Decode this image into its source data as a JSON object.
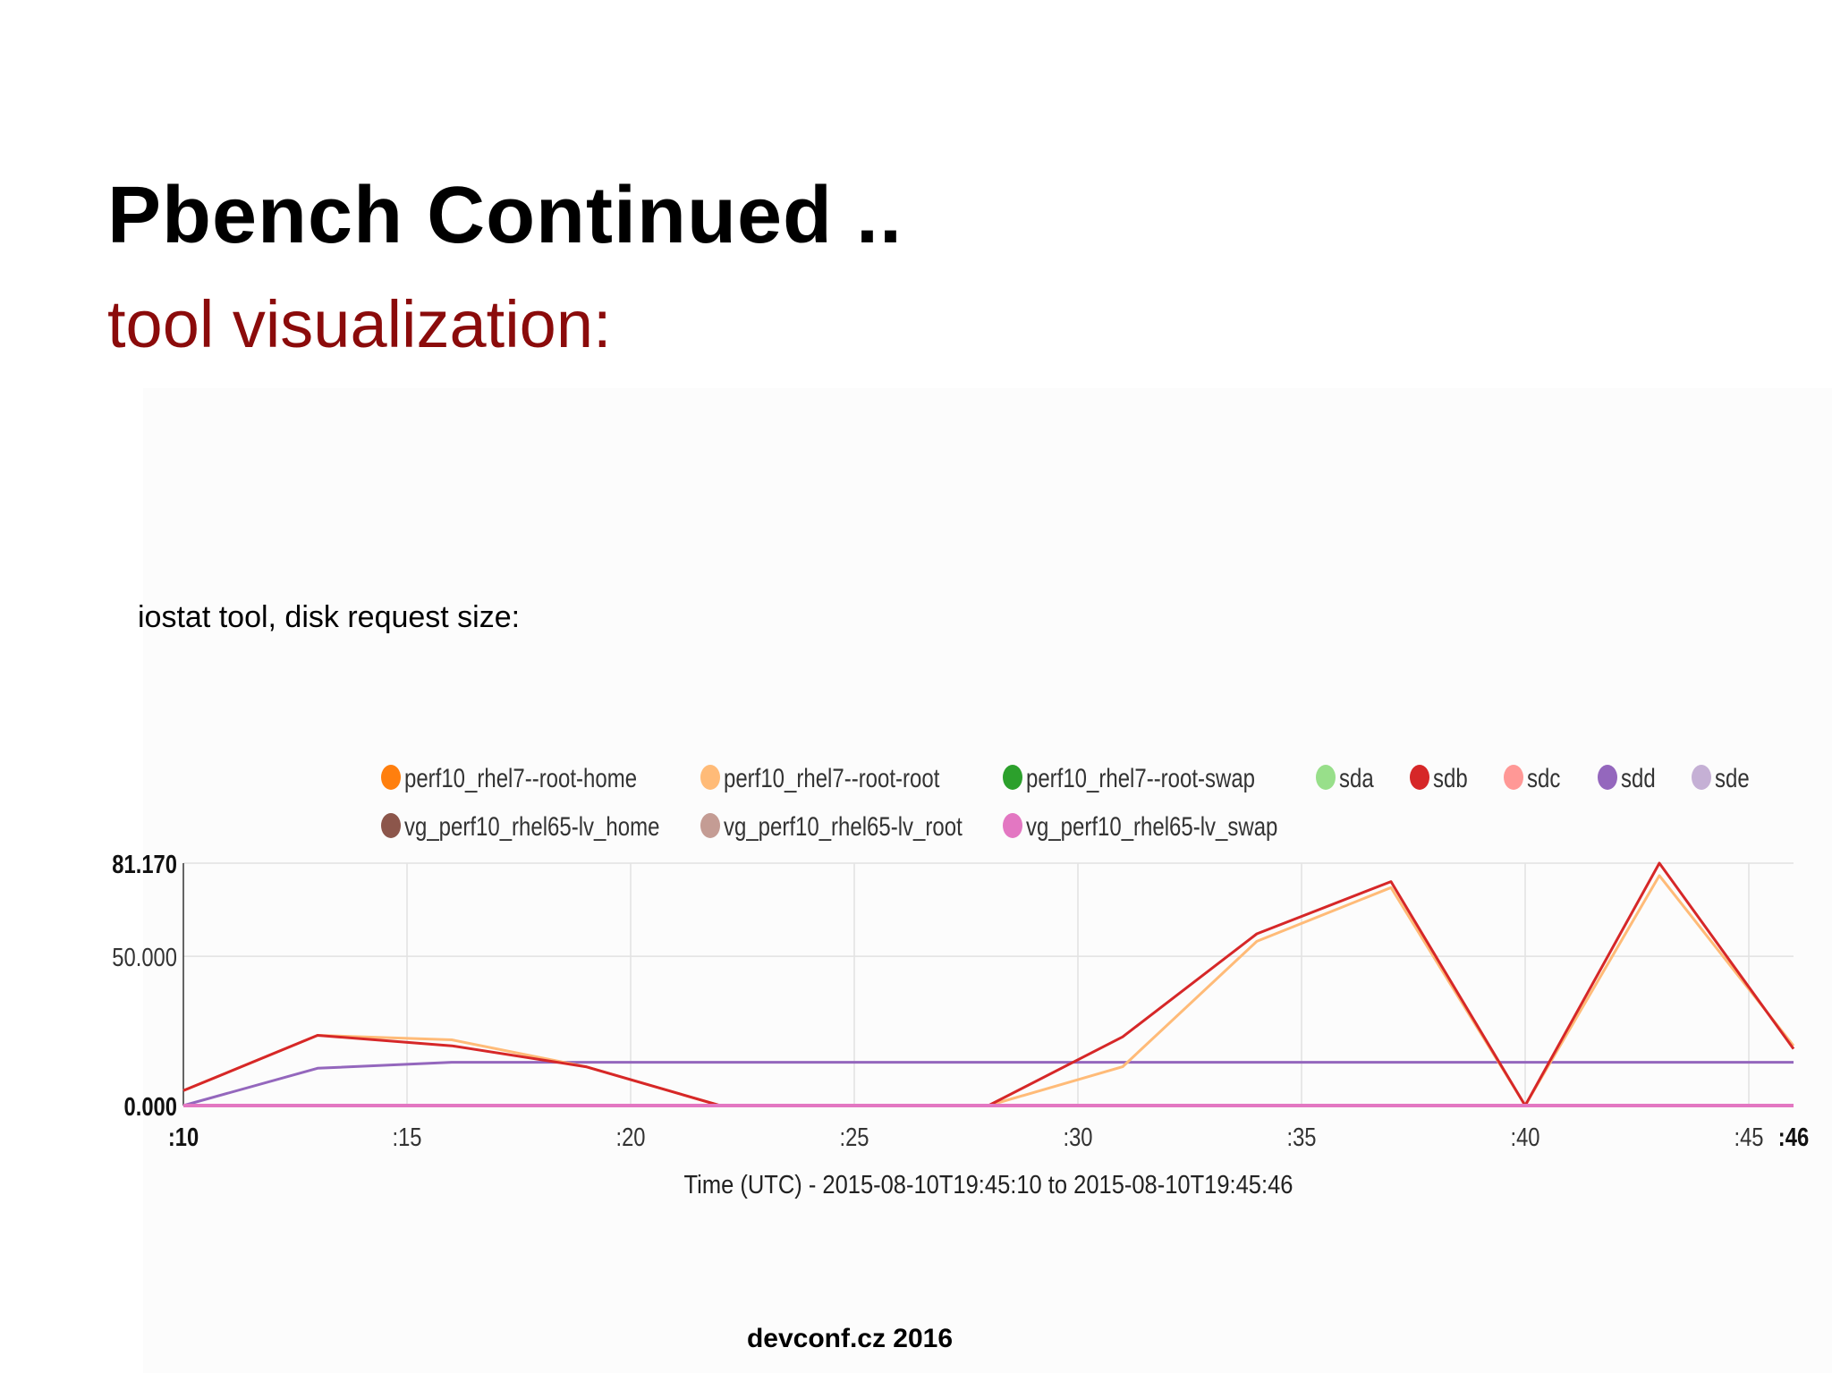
{
  "slide": {
    "title": "Pbench Continued ..",
    "subtitle": "tool visualization:",
    "caption": "iostat tool, disk request size:",
    "footer": "devconf.cz 2016"
  },
  "chart_data": {
    "type": "line",
    "title": "",
    "xlabel": "Time (UTC) - 2015-08-10T19:45:10 to 2015-08-10T19:45:46",
    "ylabel": "",
    "xlim": [
      10,
      46
    ],
    "ylim": [
      0,
      81.17
    ],
    "x_ticks": [
      {
        "value": 10,
        "label": ":10",
        "bold": true
      },
      {
        "value": 15,
        "label": ":15",
        "bold": false
      },
      {
        "value": 20,
        "label": ":20",
        "bold": false
      },
      {
        "value": 25,
        "label": ":25",
        "bold": false
      },
      {
        "value": 30,
        "label": ":30",
        "bold": false
      },
      {
        "value": 35,
        "label": ":35",
        "bold": false
      },
      {
        "value": 40,
        "label": ":40",
        "bold": false
      },
      {
        "value": 45,
        "label": ":45",
        "bold": false
      },
      {
        "value": 46,
        "label": ":46",
        "bold": true
      }
    ],
    "y_ticks": [
      {
        "value": 0,
        "label": "0.000",
        "bold": true
      },
      {
        "value": 50,
        "label": "50.000",
        "bold": false
      },
      {
        "value": 81.17,
        "label": "81.170",
        "bold": true
      }
    ],
    "grid": true,
    "legend_position": "top",
    "series": [
      {
        "name": "perf10_rhel7--root-home",
        "color": "#ff7f0e",
        "x": [
          10,
          46
        ],
        "y": [
          0,
          0
        ]
      },
      {
        "name": "perf10_rhel7--root-root",
        "color": "#ffbb78",
        "x": [
          10,
          13,
          16,
          19,
          22,
          28,
          31,
          34,
          37,
          40,
          43,
          46
        ],
        "y": [
          5,
          23.5,
          22,
          13,
          0,
          0,
          13,
          55,
          73,
          0,
          77,
          20
        ]
      },
      {
        "name": "perf10_rhel7--root-swap",
        "color": "#2ca02c",
        "x": [
          10,
          46
        ],
        "y": [
          0,
          0
        ]
      },
      {
        "name": "sda",
        "color": "#98df8a",
        "x": [
          10,
          46
        ],
        "y": [
          0,
          0
        ]
      },
      {
        "name": "sdb",
        "color": "#d62728",
        "x": [
          10,
          13,
          16,
          19,
          22,
          28,
          31,
          34,
          37,
          40,
          43,
          46
        ],
        "y": [
          5,
          23.5,
          20,
          13,
          0,
          0,
          23,
          57.5,
          75,
          0,
          81.17,
          19
        ]
      },
      {
        "name": "sdc",
        "color": "#ff9896",
        "x": [
          10,
          46
        ],
        "y": [
          0,
          0
        ]
      },
      {
        "name": "sdd",
        "color": "#9467bd",
        "x": [
          10,
          13,
          16,
          25,
          46
        ],
        "y": [
          0,
          12.5,
          14.5,
          14.5,
          14.5
        ]
      },
      {
        "name": "sde",
        "color": "#c5b0d5",
        "x": [
          10,
          46
        ],
        "y": [
          0,
          0
        ]
      },
      {
        "name": "vg_perf10_rhel65-lv_home",
        "color": "#8c564b",
        "x": [
          10,
          46
        ],
        "y": [
          0,
          0
        ]
      },
      {
        "name": "vg_perf10_rhel65-lv_root",
        "color": "#c49c94",
        "x": [
          10,
          46
        ],
        "y": [
          0,
          0
        ]
      },
      {
        "name": "vg_perf10_rhel65-lv_swap",
        "color": "#e377c2",
        "x": [
          10,
          46
        ],
        "y": [
          0,
          0
        ]
      }
    ]
  }
}
